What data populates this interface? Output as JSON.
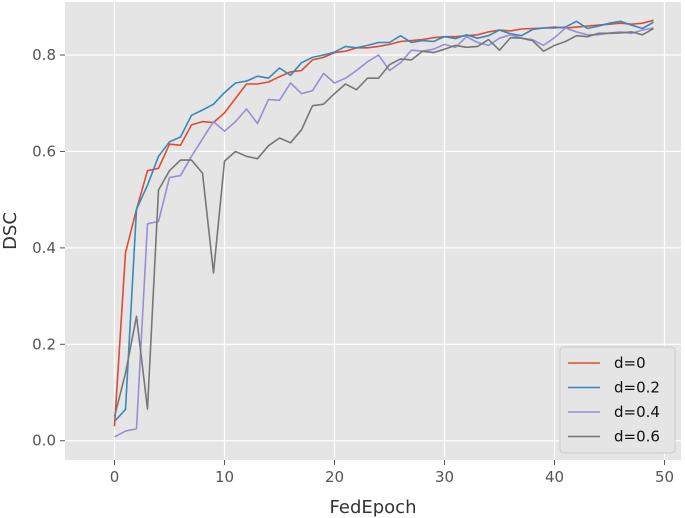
{
  "chart_data": {
    "type": "line",
    "xlabel": "FedEpoch",
    "ylabel": "DSC",
    "xlim": [
      -4.5,
      51.5
    ],
    "ylim": [
      -0.04,
      0.91
    ],
    "xticks": [
      0,
      10,
      20,
      30,
      40,
      50
    ],
    "yticks": [
      0.0,
      0.2,
      0.4,
      0.6,
      0.8
    ],
    "ytick_labels": [
      "0.0",
      "0.2",
      "0.4",
      "0.6",
      "0.8"
    ],
    "grid": true,
    "background": "#e5e5e5",
    "grid_color": "#ffffff",
    "legend_position": "lower-right",
    "series": [
      {
        "name": "d=0",
        "color": "#e24a33",
        "x": [
          0,
          1,
          2,
          3,
          4,
          5,
          6,
          7,
          8,
          9,
          10,
          11,
          12,
          13,
          14,
          15,
          16,
          17,
          18,
          19,
          20,
          21,
          22,
          23,
          24,
          25,
          26,
          27,
          28,
          29,
          30,
          31,
          32,
          33,
          34,
          35,
          36,
          37,
          38,
          39,
          40,
          41,
          42,
          43,
          44,
          45,
          46,
          47,
          48,
          49
        ],
        "values": [
          0.03,
          0.39,
          0.48,
          0.56,
          0.565,
          0.615,
          0.613,
          0.655,
          0.662,
          0.66,
          0.68,
          0.71,
          0.74,
          0.74,
          0.744,
          0.755,
          0.765,
          0.768,
          0.79,
          0.795,
          0.805,
          0.808,
          0.815,
          0.815,
          0.818,
          0.822,
          0.828,
          0.83,
          0.832,
          0.836,
          0.838,
          0.838,
          0.84,
          0.842,
          0.848,
          0.852,
          0.85,
          0.854,
          0.855,
          0.856,
          0.858,
          0.856,
          0.858,
          0.86,
          0.862,
          0.864,
          0.866,
          0.864,
          0.866,
          0.872
        ]
      },
      {
        "name": "d=0.2",
        "color": "#348abd",
        "x": [
          0,
          1,
          2,
          3,
          4,
          5,
          6,
          7,
          8,
          9,
          10,
          11,
          12,
          13,
          14,
          15,
          16,
          17,
          18,
          19,
          20,
          21,
          22,
          23,
          24,
          25,
          26,
          27,
          28,
          29,
          30,
          31,
          32,
          33,
          34,
          35,
          36,
          37,
          38,
          39,
          40,
          41,
          42,
          43,
          44,
          45,
          46,
          47,
          48,
          49
        ],
        "values": [
          0.04,
          0.065,
          0.48,
          0.53,
          0.59,
          0.62,
          0.63,
          0.675,
          0.686,
          0.698,
          0.722,
          0.742,
          0.746,
          0.756,
          0.752,
          0.773,
          0.758,
          0.784,
          0.795,
          0.8,
          0.806,
          0.818,
          0.815,
          0.82,
          0.826,
          0.826,
          0.84,
          0.826,
          0.83,
          0.828,
          0.838,
          0.834,
          0.842,
          0.835,
          0.84,
          0.852,
          0.844,
          0.84,
          0.853,
          0.856,
          0.856,
          0.858,
          0.87,
          0.855,
          0.86,
          0.866,
          0.87,
          0.862,
          0.855,
          0.868
        ]
      },
      {
        "name": "d=0.4",
        "color": "#988ed5",
        "x": [
          0,
          1,
          2,
          3,
          4,
          5,
          6,
          7,
          8,
          9,
          10,
          11,
          12,
          13,
          14,
          15,
          16,
          17,
          18,
          19,
          20,
          21,
          22,
          23,
          24,
          25,
          26,
          27,
          28,
          29,
          30,
          31,
          32,
          33,
          34,
          35,
          36,
          37,
          38,
          39,
          40,
          41,
          42,
          43,
          44,
          45,
          46,
          47,
          48,
          49
        ],
        "values": [
          0.008,
          0.02,
          0.025,
          0.45,
          0.455,
          0.546,
          0.55,
          0.59,
          0.626,
          0.662,
          0.642,
          0.662,
          0.688,
          0.658,
          0.708,
          0.706,
          0.742,
          0.72,
          0.726,
          0.762,
          0.742,
          0.752,
          0.768,
          0.786,
          0.8,
          0.768,
          0.784,
          0.81,
          0.808,
          0.812,
          0.822,
          0.816,
          0.838,
          0.826,
          0.82,
          0.835,
          0.842,
          0.835,
          0.832,
          0.82,
          0.836,
          0.856,
          0.848,
          0.842,
          0.842,
          0.846,
          0.848,
          0.845,
          0.852,
          0.856
        ]
      },
      {
        "name": "d=0.6",
        "color": "#777777",
        "x": [
          0,
          1,
          2,
          3,
          4,
          5,
          6,
          7,
          8,
          9,
          10,
          11,
          12,
          13,
          14,
          15,
          16,
          17,
          18,
          19,
          20,
          21,
          22,
          23,
          24,
          25,
          26,
          27,
          28,
          29,
          30,
          31,
          32,
          33,
          34,
          35,
          36,
          37,
          38,
          39,
          40,
          41,
          42,
          43,
          44,
          45,
          46,
          47,
          48,
          49
        ],
        "values": [
          0.05,
          0.14,
          0.258,
          0.066,
          0.52,
          0.56,
          0.582,
          0.582,
          0.555,
          0.348,
          0.58,
          0.6,
          0.59,
          0.585,
          0.612,
          0.628,
          0.618,
          0.645,
          0.695,
          0.698,
          0.72,
          0.74,
          0.728,
          0.752,
          0.752,
          0.78,
          0.792,
          0.79,
          0.808,
          0.805,
          0.812,
          0.82,
          0.816,
          0.818,
          0.832,
          0.81,
          0.836,
          0.835,
          0.83,
          0.808,
          0.82,
          0.828,
          0.84,
          0.838,
          0.845,
          0.845,
          0.846,
          0.848,
          0.842,
          0.855
        ]
      }
    ]
  }
}
